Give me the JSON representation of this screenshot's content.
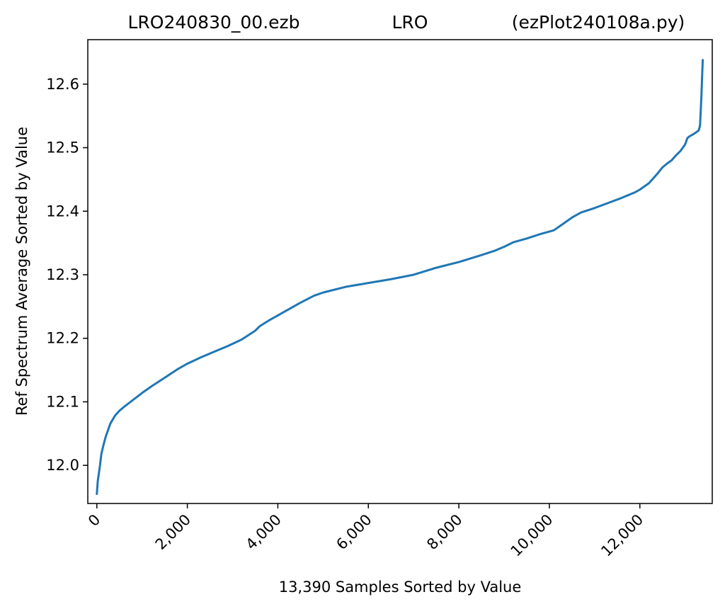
{
  "title": {
    "left": "LRO240830_00.ezb",
    "center": "LRO",
    "right": "(ezPlot240108a.py)"
  },
  "colors": {
    "series": "#1f77b4",
    "axes": "#000000",
    "background": "#ffffff"
  },
  "chart_data": {
    "type": "line",
    "xlabel": "13,390 Samples Sorted by Value",
    "ylabel": "Ref Spectrum Average Sorted by Value",
    "xlim": [
      -200,
      13600
    ],
    "ylim": [
      11.94,
      12.67
    ],
    "grid": false,
    "xticks": [
      0,
      2000,
      4000,
      6000,
      8000,
      10000,
      12000
    ],
    "xtick_labels": [
      "0",
      "2,000",
      "4,000",
      "6,000",
      "8,000",
      "10,000",
      "12,000"
    ],
    "yticks": [
      12.0,
      12.1,
      12.2,
      12.3,
      12.4,
      12.5,
      12.6
    ],
    "ytick_labels": [
      "12.0",
      "12.1",
      "12.2",
      "12.3",
      "12.4",
      "12.5",
      "12.6"
    ],
    "series": [
      {
        "x": [
          0,
          20,
          40,
          70,
          100,
          150,
          200,
          300,
          400,
          500,
          600,
          800,
          1000,
          1200,
          1500,
          1800,
          2000,
          2300,
          2600,
          2900,
          3200,
          3500,
          3600,
          3800,
          4000,
          4200,
          4500,
          4800,
          5000,
          5500,
          6000,
          6500,
          7000,
          7500,
          8000,
          8500,
          8800,
          9000,
          9200,
          9500,
          9800,
          10100,
          10300,
          10500,
          10700,
          11000,
          11300,
          11600,
          11900,
          12000,
          12200,
          12300,
          12400,
          12500,
          12600,
          12700,
          12800,
          12900,
          13000,
          13050,
          13100,
          13200,
          13300,
          13330,
          13360,
          13380,
          13390
        ],
        "y": [
          11.955,
          11.975,
          11.985,
          12.0,
          12.018,
          12.033,
          12.046,
          12.066,
          12.078,
          12.086,
          12.092,
          12.103,
          12.114,
          12.124,
          12.138,
          12.152,
          12.16,
          12.17,
          12.179,
          12.188,
          12.198,
          12.212,
          12.219,
          12.228,
          12.236,
          12.244,
          12.256,
          12.267,
          12.272,
          12.281,
          12.287,
          12.293,
          12.3,
          12.311,
          12.32,
          12.331,
          12.338,
          12.344,
          12.351,
          12.357,
          12.364,
          12.37,
          12.38,
          12.39,
          12.398,
          12.405,
          12.413,
          12.421,
          12.43,
          12.434,
          12.444,
          12.452,
          12.46,
          12.469,
          12.475,
          12.48,
          12.488,
          12.495,
          12.505,
          12.515,
          12.518,
          12.522,
          12.527,
          12.535,
          12.58,
          12.62,
          12.638
        ]
      }
    ]
  }
}
